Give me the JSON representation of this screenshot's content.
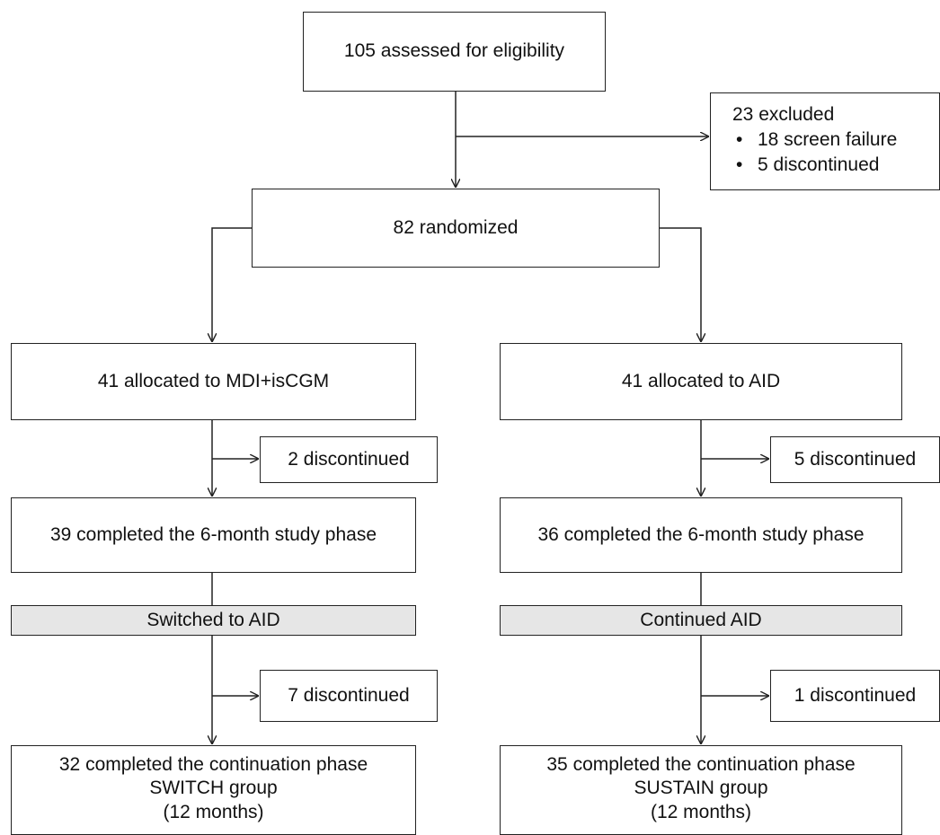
{
  "assessed": "105 assessed for eligibility",
  "excluded": {
    "title": "23 excluded",
    "items": [
      "18 screen failure",
      "5 discontinued"
    ]
  },
  "randomized": "82 randomized",
  "left": {
    "allocated": "41 allocated to MDI+isCGM",
    "disc1": "2 discontinued",
    "completed6": "39 completed the 6-month study phase",
    "phase": "Switched to AID",
    "disc2": "7 discontinued",
    "final": [
      "32 completed the continuation phase",
      "SWITCH group",
      "(12 months)"
    ]
  },
  "right": {
    "allocated": "41 allocated to AID",
    "disc1": "5 discontinued",
    "completed6": "36 completed the 6-month study phase",
    "phase": "Continued AID",
    "disc2": "1 discontinued",
    "final": [
      "35 completed the continuation phase",
      "SUSTAIN group",
      "(12 months)"
    ]
  }
}
